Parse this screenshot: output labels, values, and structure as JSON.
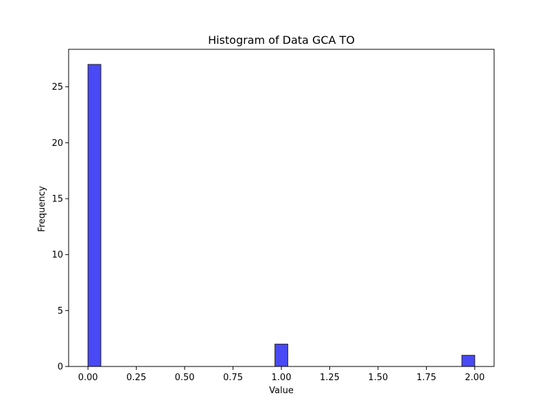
{
  "chart_data": {
    "type": "bar",
    "title": "Histogram of Data GCA TO",
    "xlabel": "Value",
    "ylabel": "Frequency",
    "xlim": [
      -0.1,
      2.1
    ],
    "ylim": [
      0,
      28.35
    ],
    "bin_width": 0.0667,
    "bars": [
      {
        "x_start": 0.0,
        "x_end": 0.0667,
        "count": 27
      },
      {
        "x_start": 0.9667,
        "x_end": 1.0333,
        "count": 2
      },
      {
        "x_start": 1.9333,
        "x_end": 2.0,
        "count": 1
      }
    ],
    "x_ticks": [
      {
        "value": 0.0,
        "label": "0.00"
      },
      {
        "value": 0.25,
        "label": "0.25"
      },
      {
        "value": 0.5,
        "label": "0.50"
      },
      {
        "value": 0.75,
        "label": "0.75"
      },
      {
        "value": 1.0,
        "label": "1.00"
      },
      {
        "value": 1.25,
        "label": "1.25"
      },
      {
        "value": 1.5,
        "label": "1.50"
      },
      {
        "value": 1.75,
        "label": "1.75"
      },
      {
        "value": 2.0,
        "label": "2.00"
      }
    ],
    "y_ticks": [
      {
        "value": 0,
        "label": "0"
      },
      {
        "value": 5,
        "label": "5"
      },
      {
        "value": 10,
        "label": "10"
      },
      {
        "value": 15,
        "label": "15"
      },
      {
        "value": 20,
        "label": "20"
      },
      {
        "value": 25,
        "label": "25"
      }
    ],
    "grid": false,
    "colors": {
      "bar_fill": "#4949f5",
      "bar_edge": "#222222",
      "axis": "#000000"
    }
  }
}
